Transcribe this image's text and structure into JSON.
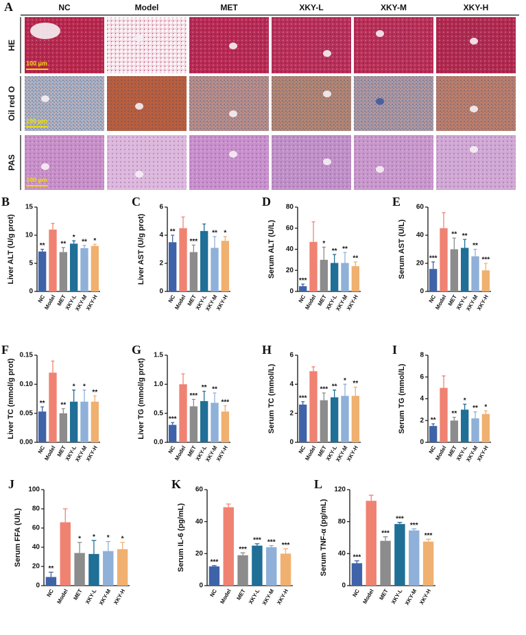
{
  "histology": {
    "panel": "A",
    "columns": [
      "NC",
      "Model",
      "MET",
      "XKY-L",
      "XKY-M",
      "XKY-H"
    ],
    "rows": [
      "HE",
      "Oil red O",
      "PAS"
    ],
    "scale_bar": "100 μm"
  },
  "chart_data": [
    {
      "type": "bar",
      "panel": "B",
      "ylabel": "Liver ALT (U/g prot)",
      "categories": [
        "NC",
        "Model",
        "MET",
        "XKY-L",
        "XKY-M",
        "XKY-H"
      ],
      "colors": [
        "#3f63a8",
        "#f08272",
        "#8c8c8c",
        "#1f6f97",
        "#8fb0d8",
        "#f0b070"
      ],
      "values": [
        7.1,
        11,
        7,
        8.5,
        7.7,
        8.1
      ],
      "errors": [
        0.4,
        1.1,
        0.8,
        0.5,
        0.5,
        0.3
      ],
      "significance": [
        "**",
        null,
        "**",
        "*",
        "**",
        "*"
      ],
      "ylim": [
        0,
        15
      ],
      "yticks": [
        0,
        5,
        10,
        15
      ]
    },
    {
      "type": "bar",
      "panel": "C",
      "ylabel": "Liver AST (U/g prot)",
      "categories": [
        "NC",
        "Model",
        "MET",
        "XKY-L",
        "XKY-M",
        "XKY-H"
      ],
      "colors": [
        "#3f63a8",
        "#f08272",
        "#8c8c8c",
        "#1f6f97",
        "#8fb0d8",
        "#f0b070"
      ],
      "values": [
        3.5,
        4.5,
        2.8,
        4.3,
        3.1,
        3.6
      ],
      "errors": [
        0.5,
        0.8,
        0.5,
        0.5,
        0.8,
        0.3
      ],
      "significance": [
        "**",
        null,
        "***",
        null,
        "**",
        "*"
      ],
      "ylim": [
        0,
        6
      ],
      "yticks": [
        0,
        2,
        4,
        6
      ]
    },
    {
      "type": "bar",
      "panel": "D",
      "ylabel": "Serum ALT (U/L)",
      "categories": [
        "NC",
        "Model",
        "MET",
        "XKY-L",
        "XKY-M",
        "XKY-H"
      ],
      "colors": [
        "#3f63a8",
        "#f08272",
        "#8c8c8c",
        "#1f6f97",
        "#8fb0d8",
        "#f0b070"
      ],
      "values": [
        5,
        47,
        30,
        27,
        27,
        24
      ],
      "errors": [
        2,
        19,
        12,
        8,
        10,
        4
      ],
      "significance": [
        "***",
        null,
        "*",
        "**",
        "**",
        "**"
      ],
      "ylim": [
        0,
        80
      ],
      "yticks": [
        0,
        20,
        40,
        60,
        80
      ]
    },
    {
      "type": "bar",
      "panel": "E",
      "ylabel": "Serum AST (U/L)",
      "categories": [
        "NC",
        "Model",
        "MET",
        "XKY-L",
        "XKY-M",
        "XKY-H"
      ],
      "colors": [
        "#3f63a8",
        "#f08272",
        "#8c8c8c",
        "#1f6f97",
        "#8fb0d8",
        "#f0b070"
      ],
      "values": [
        16,
        45,
        30,
        31,
        25,
        15
      ],
      "errors": [
        5,
        11,
        8,
        6,
        5,
        5
      ],
      "significance": [
        "***",
        null,
        "**",
        "**",
        "**",
        "***"
      ],
      "ylim": [
        0,
        60
      ],
      "yticks": [
        0,
        20,
        40,
        60
      ]
    },
    {
      "type": "bar",
      "panel": "F",
      "ylabel": "Liver TC (mmol/g prot)",
      "categories": [
        "NC",
        "Model",
        "MET",
        "XKY-L",
        "XKY-M",
        "XKY-H"
      ],
      "colors": [
        "#3f63a8",
        "#f08272",
        "#8c8c8c",
        "#1f6f97",
        "#8fb0d8",
        "#f0b070"
      ],
      "values": [
        0.053,
        0.12,
        0.05,
        0.07,
        0.07,
        0.07
      ],
      "errors": [
        0.008,
        0.02,
        0.008,
        0.02,
        0.02,
        0.01
      ],
      "significance": [
        "**",
        null,
        "**",
        "*",
        "*",
        "**"
      ],
      "ylim": [
        0,
        0.15
      ],
      "yticks": [
        {
          "value": 0,
          "label": "0.00"
        },
        {
          "value": 0.05,
          "label": "0.05"
        },
        {
          "value": 0.1,
          "label": "0.10"
        },
        {
          "value": 0.15,
          "label": "0.15"
        }
      ]
    },
    {
      "type": "bar",
      "panel": "G",
      "ylabel": "Liver TG (mmol/g prot)",
      "categories": [
        "NC",
        "Model",
        "MET",
        "XKY-L",
        "XKY-M",
        "XKY-H"
      ],
      "colors": [
        "#3f63a8",
        "#f08272",
        "#8c8c8c",
        "#1f6f97",
        "#8fb0d8",
        "#f0b070"
      ],
      "values": [
        0.3,
        1.0,
        0.62,
        0.71,
        0.68,
        0.53
      ],
      "errors": [
        0.04,
        0.18,
        0.12,
        0.17,
        0.17,
        0.1
      ],
      "significance": [
        "***",
        null,
        "***",
        "**",
        "**",
        "***"
      ],
      "ylim": [
        0,
        1.5
      ],
      "yticks": [
        {
          "value": 0,
          "label": "0.0"
        },
        0.5,
        {
          "value": 1,
          "label": "1.0"
        },
        1.5
      ]
    },
    {
      "type": "bar",
      "panel": "H",
      "ylabel": "Serum TC (mmol/L)",
      "categories": [
        "NC",
        "Model",
        "MET",
        "XKY-L",
        "XKY-M",
        "XKY-H"
      ],
      "colors": [
        "#3f63a8",
        "#f08272",
        "#8c8c8c",
        "#1f6f97",
        "#8fb0d8",
        "#f0b070"
      ],
      "values": [
        2.6,
        4.9,
        2.9,
        3.1,
        3.2,
        3.2
      ],
      "errors": [
        0.2,
        0.3,
        0.5,
        0.5,
        0.8,
        0.6
      ],
      "significance": [
        "***",
        null,
        "***",
        "**",
        "*",
        "**"
      ],
      "ylim": [
        0,
        6
      ],
      "yticks": [
        0,
        2,
        4,
        6
      ]
    },
    {
      "type": "bar",
      "panel": "I",
      "ylabel": "Serum TG (mmol/L)",
      "categories": [
        "NC",
        "Model",
        "MET",
        "XKY-L",
        "XKY-M",
        "XKY-H"
      ],
      "colors": [
        "#3f63a8",
        "#f08272",
        "#8c8c8c",
        "#1f6f97",
        "#8fb0d8",
        "#f0b070"
      ],
      "values": [
        1.5,
        5,
        2,
        3,
        2.2,
        2.6
      ],
      "errors": [
        0.2,
        1.1,
        0.3,
        0.5,
        0.6,
        0.3
      ],
      "significance": [
        "**",
        null,
        "**",
        "*",
        "**",
        "*"
      ],
      "ylim": [
        0,
        8
      ],
      "yticks": [
        0,
        2,
        4,
        6,
        8
      ]
    },
    {
      "type": "bar",
      "panel": "J",
      "ylabel": "Serum FFA (U/L)",
      "categories": [
        "NC",
        "Model",
        "MET",
        "XKY-L",
        "XKY-M",
        "XKY-H"
      ],
      "colors": [
        "#3f63a8",
        "#f08272",
        "#8c8c8c",
        "#1f6f97",
        "#8fb0d8",
        "#f0b070"
      ],
      "values": [
        9,
        66,
        34,
        33,
        36,
        38
      ],
      "errors": [
        5,
        14,
        11,
        14,
        10,
        7
      ],
      "significance": [
        "**",
        null,
        "*",
        "*",
        "*",
        "*"
      ],
      "ylim": [
        0,
        100
      ],
      "yticks": [
        0,
        20,
        40,
        60,
        80,
        100
      ]
    },
    {
      "type": "bar",
      "panel": "K",
      "ylabel": "Serum IL-6 (pg/mL)",
      "categories": [
        "NC",
        "Model",
        "MET",
        "XKY-L",
        "XKY-M",
        "XKY-H"
      ],
      "colors": [
        "#3f63a8",
        "#f08272",
        "#8c8c8c",
        "#1f6f97",
        "#8fb0d8",
        "#f0b070"
      ],
      "values": [
        12,
        49,
        19,
        25,
        24,
        20
      ],
      "errors": [
        0.5,
        2,
        1.5,
        1.2,
        1,
        3
      ],
      "significance": [
        "***",
        null,
        "***",
        "***",
        "***",
        "***"
      ],
      "ylim": [
        0,
        60
      ],
      "yticks": [
        0,
        20,
        40,
        60
      ]
    },
    {
      "type": "bar",
      "panel": "L",
      "ylabel": "Serum TNF-α (pg/mL)",
      "categories": [
        "NC",
        "Model",
        "MET",
        "XKY-L",
        "XKY-M",
        "XKY-H"
      ],
      "colors": [
        "#3f63a8",
        "#f08272",
        "#8c8c8c",
        "#1f6f97",
        "#8fb0d8",
        "#f0b070"
      ],
      "values": [
        28,
        106,
        56,
        77,
        69,
        55
      ],
      "errors": [
        3,
        7,
        5,
        2,
        2,
        3
      ],
      "significance": [
        "***",
        null,
        "***",
        "***",
        "***",
        "***"
      ],
      "ylim": [
        0,
        120
      ],
      "yticks": [
        0,
        40,
        80,
        120
      ]
    }
  ]
}
